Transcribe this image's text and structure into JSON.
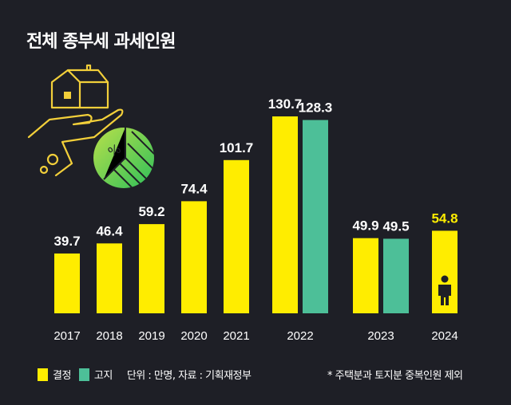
{
  "chart_data": {
    "type": "bar",
    "title": "전체 종부세 과세인원",
    "categories": [
      "2017",
      "2018",
      "2019",
      "2020",
      "2021",
      "2022",
      "2023",
      "2024"
    ],
    "series": [
      {
        "name": "결정",
        "color": "#ffed00",
        "values": [
          39.7,
          46.4,
          59.2,
          74.4,
          101.7,
          130.7,
          49.9,
          54.8
        ]
      },
      {
        "name": "고지",
        "color": "#4dbf98",
        "values": [
          null,
          null,
          null,
          null,
          null,
          128.3,
          49.5,
          null
        ]
      }
    ],
    "ylim": [
      0,
      135
    ],
    "grid": false,
    "unit_note": "단위 : 만명, 자료 : 기획재정부",
    "footnote": "* 주택분과 토지분 중복인원 제외",
    "legend_position": "bottom-left",
    "highlight_label_color": "#ffed00",
    "icons": [
      "house-in-hand-icon",
      "percent-pie-icon",
      "person-icon"
    ]
  }
}
